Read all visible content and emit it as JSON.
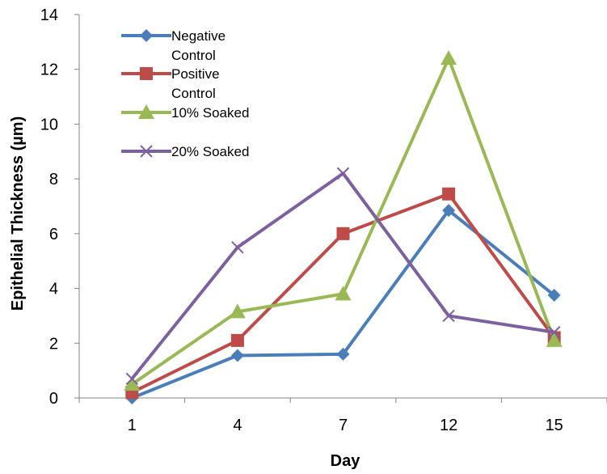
{
  "chart_data": {
    "type": "line",
    "title": "",
    "xlabel": "Day",
    "ylabel": "Epithelial Thickness (µm)",
    "categories": [
      "1",
      "4",
      "7",
      "12",
      "15"
    ],
    "ylim": [
      0,
      14
    ],
    "yticks": [
      "0",
      "2",
      "4",
      "6",
      "8",
      "10",
      "12",
      "14"
    ],
    "grid": false,
    "legend_position": "top-left",
    "series": [
      {
        "name": "Negative Control",
        "color": "#4A7EBB",
        "marker": "diamond",
        "values": [
          0.0,
          1.55,
          1.6,
          6.85,
          3.75
        ]
      },
      {
        "name": "Positive Control",
        "color": "#BE4B48",
        "marker": "square",
        "values": [
          0.2,
          2.1,
          6.0,
          7.45,
          2.2
        ]
      },
      {
        "name": "10% Soaked",
        "color": "#98B954",
        "marker": "triangle",
        "values": [
          0.5,
          3.15,
          3.8,
          12.4,
          2.1
        ]
      },
      {
        "name": "20% Soaked",
        "color": "#7D60A0",
        "marker": "x",
        "values": [
          0.7,
          5.5,
          8.2,
          3.0,
          2.4
        ]
      }
    ]
  }
}
